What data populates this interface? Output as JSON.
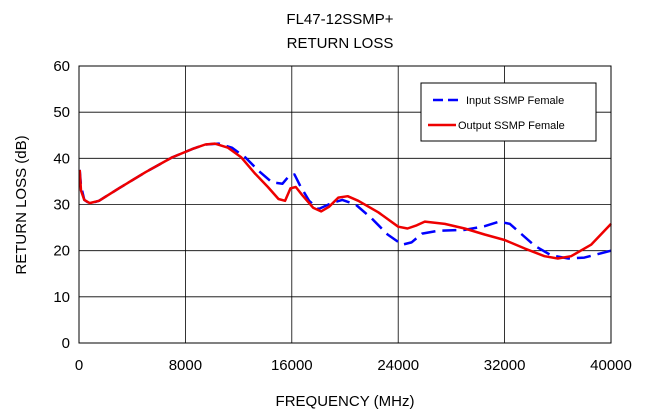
{
  "chart_data": {
    "type": "line",
    "title": "FL47-12SSMP+",
    "subtitle": "RETURN LOSS",
    "xlabel": "FREQUENCY (MHz)",
    "ylabel": "RETURN LOSS (dB)",
    "xlim": [
      0,
      40000
    ],
    "ylim": [
      0,
      60
    ],
    "xticks": [
      0,
      8000,
      16000,
      24000,
      32000,
      40000
    ],
    "yticks": [
      0,
      10,
      20,
      30,
      40,
      50,
      60
    ],
    "grid": true,
    "legend_position": "top-right",
    "series": [
      {
        "name": "Input SSMP Female",
        "color": "#0000ff",
        "style": "dashed",
        "points": [
          [
            50,
            37.5
          ],
          [
            150,
            34
          ],
          [
            400,
            31
          ],
          [
            800,
            30.2
          ],
          [
            1500,
            30.8
          ],
          [
            3000,
            33.5
          ],
          [
            5000,
            37
          ],
          [
            7000,
            40.2
          ],
          [
            8500,
            42
          ],
          [
            9500,
            43
          ],
          [
            10500,
            43.2
          ],
          [
            11500,
            42.3
          ],
          [
            12500,
            40.2
          ],
          [
            13500,
            37.3
          ],
          [
            14500,
            34.8
          ],
          [
            15300,
            34.5
          ],
          [
            15800,
            36.2
          ],
          [
            16200,
            36.5
          ],
          [
            16600,
            34.2
          ],
          [
            17300,
            30.8
          ],
          [
            18000,
            29
          ],
          [
            19000,
            30.3
          ],
          [
            19800,
            31
          ],
          [
            20800,
            30
          ],
          [
            22000,
            27
          ],
          [
            23200,
            23.5
          ],
          [
            24300,
            21.3
          ],
          [
            25000,
            21.8
          ],
          [
            25800,
            23.7
          ],
          [
            27000,
            24.3
          ],
          [
            29000,
            24.5
          ],
          [
            30500,
            25.3
          ],
          [
            31600,
            26.3
          ],
          [
            32400,
            25.8
          ],
          [
            33300,
            23.5
          ],
          [
            34300,
            21
          ],
          [
            35500,
            19
          ],
          [
            36800,
            18.3
          ],
          [
            38000,
            18.5
          ],
          [
            40000,
            20
          ]
        ]
      },
      {
        "name": "Output SSMP Female",
        "color": "#ee0000",
        "style": "solid",
        "points": [
          [
            50,
            37.5
          ],
          [
            150,
            33
          ],
          [
            400,
            31
          ],
          [
            800,
            30.3
          ],
          [
            1500,
            30.8
          ],
          [
            3000,
            33.5
          ],
          [
            5000,
            37
          ],
          [
            7000,
            40.2
          ],
          [
            8500,
            42
          ],
          [
            9500,
            43
          ],
          [
            10200,
            43.2
          ],
          [
            11200,
            42.3
          ],
          [
            12200,
            40.2
          ],
          [
            13200,
            36.8
          ],
          [
            14200,
            33.8
          ],
          [
            15000,
            31.2
          ],
          [
            15500,
            30.8
          ],
          [
            15900,
            33.5
          ],
          [
            16300,
            33.8
          ],
          [
            16800,
            32
          ],
          [
            17600,
            29.3
          ],
          [
            18200,
            28.5
          ],
          [
            18800,
            29.5
          ],
          [
            19500,
            31.5
          ],
          [
            20200,
            31.8
          ],
          [
            21000,
            30.8
          ],
          [
            22500,
            28.3
          ],
          [
            24000,
            25.2
          ],
          [
            24700,
            24.8
          ],
          [
            25400,
            25.5
          ],
          [
            26000,
            26.3
          ],
          [
            27500,
            25.8
          ],
          [
            29000,
            24.8
          ],
          [
            30500,
            23.5
          ],
          [
            32000,
            22.3
          ],
          [
            33500,
            20.5
          ],
          [
            35000,
            18.8
          ],
          [
            36000,
            18.3
          ],
          [
            37000,
            18.8
          ],
          [
            38500,
            21.3
          ],
          [
            40000,
            25.8
          ]
        ]
      }
    ]
  }
}
